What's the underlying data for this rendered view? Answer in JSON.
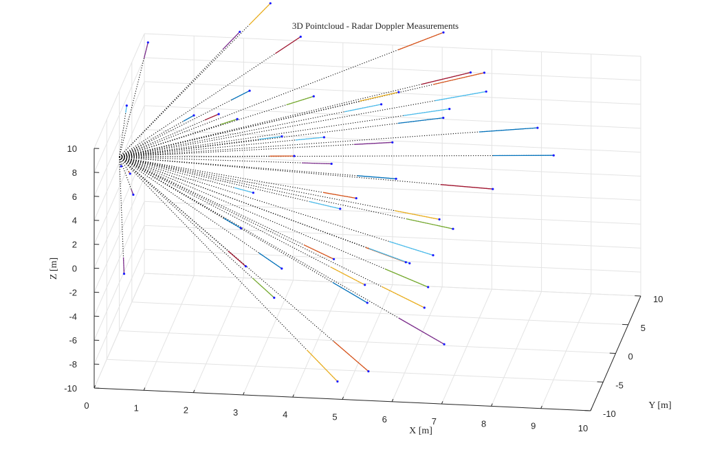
{
  "chart_data": {
    "type": "scatter3d",
    "title": "3D Pointcloud - Radar Doppler Measurements",
    "xlabel": "X [m]",
    "ylabel": "Y [m]",
    "zlabel": "Z [m]",
    "xlim": [
      0,
      10
    ],
    "ylim": [
      -10,
      10
    ],
    "zlim": [
      -10,
      10
    ],
    "grid": true,
    "sensor_origin": [
      0,
      0,
      4.5
    ],
    "x_ticks": [
      "0",
      "1",
      "2",
      "3",
      "4",
      "5",
      "6",
      "7",
      "8",
      "9",
      "10"
    ],
    "y_ticks": [
      "-10",
      "-5",
      "0",
      "5",
      "10"
    ],
    "z_ticks": [
      "-10",
      "-8",
      "-6",
      "-4",
      "-2",
      "0",
      "2",
      "4",
      "6",
      "8",
      "10"
    ],
    "palette": [
      "#0072BD",
      "#D95319",
      "#EDB120",
      "#7E2F8E",
      "#77AC30",
      "#4DBEEE",
      "#A2142F"
    ],
    "point_color": "#1a1aff",
    "ray_color": "#000000",
    "points": [
      {
        "x": 0.2,
        "y": 7.5,
        "z": 10.5,
        "c": 3
      },
      {
        "x": 0.2,
        "y": -1,
        "z": 9.3,
        "c": 5
      },
      {
        "x": 0.15,
        "y": -2.2,
        "z": 4.8,
        "c": 0
      },
      {
        "x": 0.4,
        "y": -3.6,
        "z": 4.9,
        "c": 1
      },
      {
        "x": 0.5,
        "y": -4.3,
        "z": 3.5,
        "c": 3
      },
      {
        "x": 0.4,
        "y": -6.0,
        "z": -2.3,
        "c": 3
      },
      {
        "x": 1.3,
        "y": 4,
        "z": 6.3,
        "c": 0
      },
      {
        "x": 1.8,
        "y": 4,
        "z": 6.5,
        "c": 6
      },
      {
        "x": 2.5,
        "y": -1,
        "z": -0.5,
        "c": 0
      },
      {
        "x": 2.2,
        "y": 4.5,
        "z": 13.2,
        "c": 3
      },
      {
        "x": 2.6,
        "y": 8.8,
        "z": 13.6,
        "c": 2
      },
      {
        "x": 3.3,
        "y": 7.0,
        "z": 11.8,
        "c": 6
      },
      {
        "x": 2.5,
        "y": 2.5,
        "z": 9.3,
        "c": 0
      },
      {
        "x": 3.7,
        "y": 4.3,
        "z": 8.2,
        "c": 4
      },
      {
        "x": 2.2,
        "y": 3.5,
        "z": 6.4,
        "c": 4
      },
      {
        "x": 3.2,
        "y": 1.5,
        "z": 6.1,
        "c": 5
      },
      {
        "x": 4.0,
        "y": 2.5,
        "z": 5.7,
        "c": 5
      },
      {
        "x": 3.5,
        "y": 0.5,
        "z": 5.0,
        "c": 1
      },
      {
        "x": 4.2,
        "y": 1.5,
        "z": 4.0,
        "c": 3
      },
      {
        "x": 2.8,
        "y": -2,
        "z": 3.0,
        "c": 5
      },
      {
        "x": 2.8,
        "y": -5.0,
        "z": -1.7,
        "c": 6
      },
      {
        "x": 3.5,
        "y": -7.5,
        "z": -3.0,
        "c": 4
      },
      {
        "x": 3.5,
        "y": -4.5,
        "z": -2.0,
        "c": 0
      },
      {
        "x": 4.5,
        "y": -3.5,
        "z": -1.5,
        "c": 1
      },
      {
        "x": 4.8,
        "y": -8.0,
        "z": -9.5,
        "c": 2
      },
      {
        "x": 5.3,
        "y": -6.0,
        "z": -3.8,
        "c": 0
      },
      {
        "x": 5.5,
        "y": -9.5,
        "z": -7.8,
        "c": 1
      },
      {
        "x": 4.5,
        "y": -1,
        "z": 1.5,
        "c": 5
      },
      {
        "x": 4.8,
        "y": -0.5,
        "z": 2.2,
        "c": 1
      },
      {
        "x": 5.5,
        "y": 1.5,
        "z": 3.0,
        "c": 0
      },
      {
        "x": 5.3,
        "y": 4,
        "z": 4.8,
        "c": 3
      },
      {
        "x": 5.0,
        "y": 5.5,
        "z": 7.2,
        "c": 5
      },
      {
        "x": 5.3,
        "y": 6.5,
        "z": 7.8,
        "c": 2
      },
      {
        "x": 7.2,
        "y": 3.8,
        "z": 9.5,
        "c": 5
      },
      {
        "x": 6.8,
        "y": 5.5,
        "z": 10.2,
        "c": 6
      },
      {
        "x": 7.0,
        "y": 7.0,
        "z": 9.5,
        "c": 1
      },
      {
        "x": 6.5,
        "y": 3.0,
        "z": 8.3,
        "c": 5
      },
      {
        "x": 6.3,
        "y": 4.5,
        "z": 6.8,
        "c": 0
      },
      {
        "x": 8.3,
        "y": 2.5,
        "z": 7.3,
        "c": 0
      },
      {
        "x": 8.7,
        "y": 1.0,
        "z": 5.8,
        "c": 0
      },
      {
        "x": 7.5,
        "y": 0.5,
        "z": 3.0,
        "c": 6
      },
      {
        "x": 6.5,
        "y": -1,
        "z": 1.0,
        "c": 2
      },
      {
        "x": 6.8,
        "y": -1.5,
        "z": 0.5,
        "c": 4
      },
      {
        "x": 6.5,
        "y": -3.5,
        "z": -0.8,
        "c": 5
      },
      {
        "x": 6.0,
        "y": -4.5,
        "z": -1.0,
        "c": 1
      },
      {
        "x": 6.5,
        "y": -5.5,
        "z": -2.5,
        "c": 4
      },
      {
        "x": 6.5,
        "y": -7.0,
        "z": -3.5,
        "c": 2
      },
      {
        "x": 7.0,
        "y": -9.0,
        "z": -5.5,
        "c": 3
      },
      {
        "x": 6.0,
        "y": -3.0,
        "z": -1.8,
        "c": 5
      },
      {
        "x": 5.2,
        "y": -5.0,
        "z": -2.8,
        "c": 2
      },
      {
        "x": 6.0,
        "y": 10.5,
        "z": 11.0,
        "c": 1
      }
    ]
  }
}
